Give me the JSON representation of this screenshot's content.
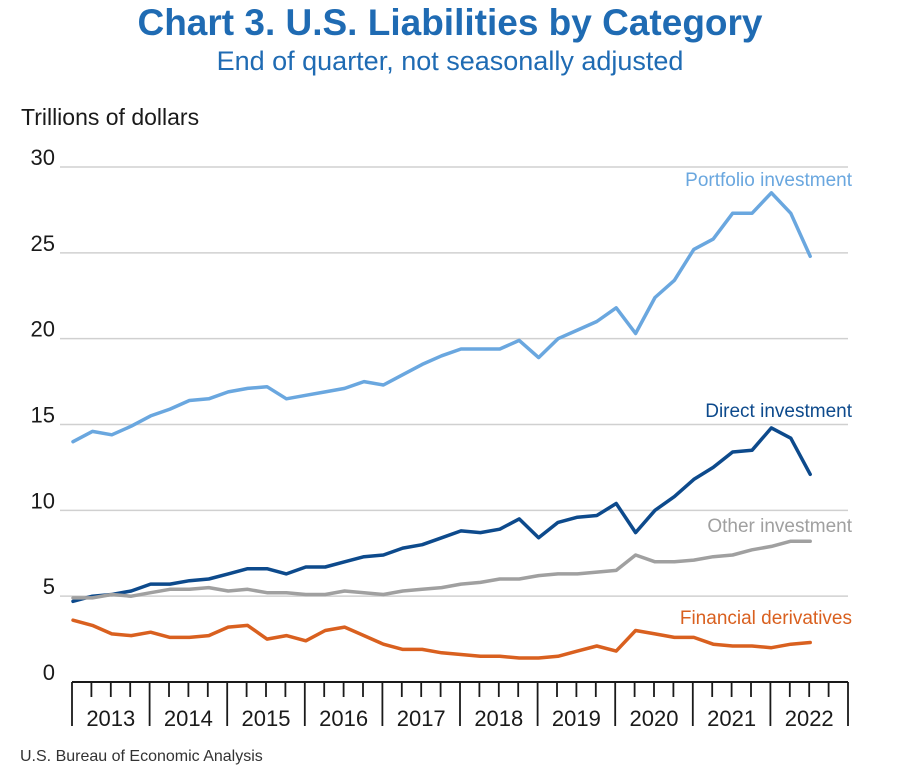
{
  "chart_data": {
    "type": "line",
    "title": "Chart 3. U.S. Liabilities by Category",
    "subtitle": "End of quarter, not seasonally adjusted",
    "ylabel": "Trillions of dollars",
    "ylim": [
      0,
      30
    ],
    "yticks": [
      0,
      5,
      10,
      15,
      20,
      25,
      30
    ],
    "grid": true,
    "years": [
      "2013",
      "2014",
      "2015",
      "2016",
      "2017",
      "2018",
      "2019",
      "2020",
      "2021",
      "2022"
    ],
    "quarters_start": "2013 Q1",
    "series": [
      {
        "name": "Portfolio investment",
        "color": "#6aa7df",
        "values": [
          14.0,
          14.6,
          14.4,
          14.9,
          15.5,
          15.9,
          16.4,
          16.5,
          16.9,
          17.1,
          17.2,
          16.5,
          16.7,
          16.9,
          17.1,
          17.5,
          17.3,
          17.9,
          18.5,
          19.0,
          19.4,
          19.4,
          19.4,
          19.9,
          18.9,
          20.0,
          20.5,
          21.0,
          21.8,
          20.3,
          22.4,
          23.4,
          25.2,
          25.8,
          27.3,
          27.3,
          28.5,
          27.3,
          24.8
        ]
      },
      {
        "name": "Direct investment",
        "color": "#0d4a8c",
        "values": [
          4.7,
          5.0,
          5.1,
          5.3,
          5.7,
          5.7,
          5.9,
          6.0,
          6.3,
          6.6,
          6.6,
          6.3,
          6.7,
          6.7,
          7.0,
          7.3,
          7.4,
          7.8,
          8.0,
          8.4,
          8.8,
          8.7,
          8.9,
          9.5,
          8.4,
          9.3,
          9.6,
          9.7,
          10.4,
          8.7,
          10.0,
          10.8,
          11.8,
          12.5,
          13.4,
          13.5,
          14.8,
          14.2,
          12.1
        ]
      },
      {
        "name": "Other investment",
        "color": "#a0a0a0",
        "values": [
          4.9,
          4.9,
          5.1,
          5.0,
          5.2,
          5.4,
          5.4,
          5.5,
          5.3,
          5.4,
          5.2,
          5.2,
          5.1,
          5.1,
          5.3,
          5.2,
          5.1,
          5.3,
          5.4,
          5.5,
          5.7,
          5.8,
          6.0,
          6.0,
          6.2,
          6.3,
          6.3,
          6.4,
          6.5,
          7.4,
          7.0,
          7.0,
          7.1,
          7.3,
          7.4,
          7.7,
          7.9,
          8.2,
          8.2
        ]
      },
      {
        "name": "Financial derivatives",
        "color": "#d9601f",
        "values": [
          3.6,
          3.3,
          2.8,
          2.7,
          2.9,
          2.6,
          2.6,
          2.7,
          3.2,
          3.3,
          2.5,
          2.7,
          2.4,
          3.0,
          3.2,
          2.7,
          2.2,
          1.9,
          1.9,
          1.7,
          1.6,
          1.5,
          1.5,
          1.4,
          1.4,
          1.5,
          1.8,
          2.1,
          1.8,
          3.0,
          2.8,
          2.6,
          2.6,
          2.2,
          2.1,
          2.1,
          2.0,
          2.2,
          2.3
        ]
      }
    ]
  },
  "source": "U.S. Bureau of Economic Analysis"
}
